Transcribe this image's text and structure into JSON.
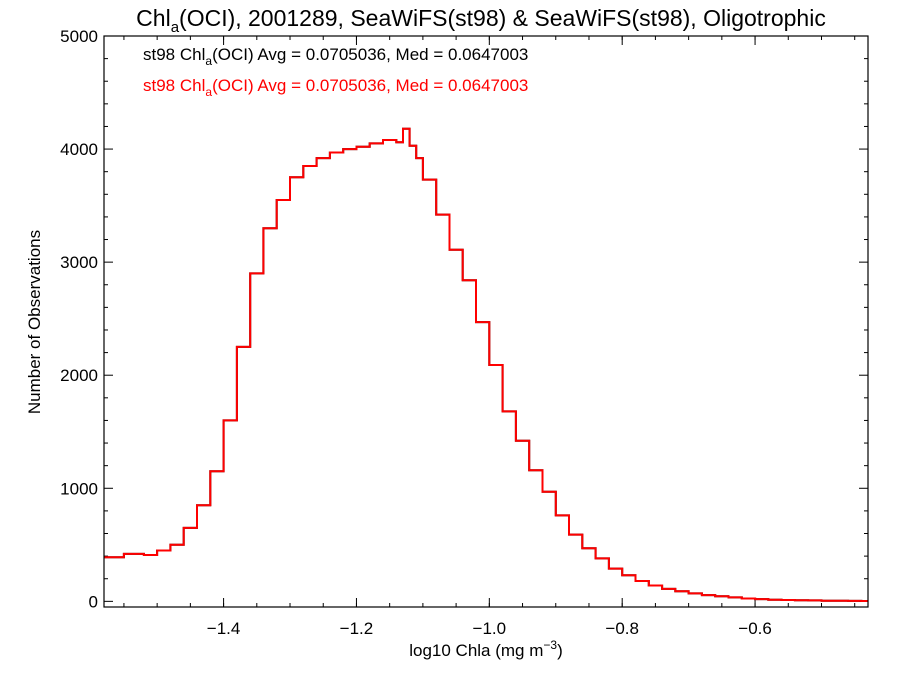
{
  "chart_data": {
    "type": "line",
    "style": "step",
    "title": {
      "prefix": "Chl",
      "subscript": "a",
      "suffix": "(OCI), 2001289, SeaWiFS(st98) & SeaWiFS(st98), Oligotrophic"
    },
    "xlabel": {
      "main": "log10 Chla (mg m",
      "sup": "−3",
      "close": ")"
    },
    "ylabel": "Number of Observations",
    "xlim": [
      -1.58,
      -0.43
    ],
    "ylim": [
      -50,
      5000
    ],
    "xticks": [
      -1.4,
      -1.2,
      -1.0,
      -0.8,
      -0.6
    ],
    "xtick_labels": [
      "−1.4",
      "−1.2",
      "−1.0",
      "−0.8",
      "−0.6"
    ],
    "yticks": [
      0,
      1000,
      2000,
      3000,
      4000,
      5000
    ],
    "ytick_labels": [
      "0",
      "1000",
      "2000",
      "3000",
      "4000",
      "5000"
    ],
    "grid": false,
    "annotations": [
      {
        "prefix": "st98 Chl",
        "subscript": "a",
        "suffix": "(OCI) Avg = 0.0705036, Med = 0.0647003",
        "color": "#000000"
      },
      {
        "prefix": "st98 Chl",
        "subscript": "a",
        "suffix": "(OCI) Avg = 0.0705036, Med = 0.0647003",
        "color": "#ff0000"
      }
    ],
    "series": [
      {
        "color": "#000000",
        "x": [
          -1.58,
          -1.55,
          -1.52,
          -1.5,
          -1.48,
          -1.46,
          -1.44,
          -1.42,
          -1.4,
          -1.38,
          -1.36,
          -1.34,
          -1.32,
          -1.3,
          -1.28,
          -1.26,
          -1.24,
          -1.22,
          -1.2,
          -1.18,
          -1.16,
          -1.14,
          -1.13,
          -1.12,
          -1.11,
          -1.1,
          -1.08,
          -1.06,
          -1.04,
          -1.02,
          -1.0,
          -0.98,
          -0.96,
          -0.94,
          -0.92,
          -0.9,
          -0.88,
          -0.86,
          -0.84,
          -0.82,
          -0.8,
          -0.78,
          -0.76,
          -0.74,
          -0.72,
          -0.7,
          -0.68,
          -0.66,
          -0.64,
          -0.62,
          -0.6,
          -0.58,
          -0.56,
          -0.54,
          -0.52,
          -0.5,
          -0.48,
          -0.46,
          -0.44
        ],
        "y": [
          390,
          420,
          410,
          450,
          500,
          650,
          850,
          1150,
          1600,
          2250,
          2900,
          3300,
          3550,
          3750,
          3850,
          3920,
          3970,
          4000,
          4020,
          4050,
          4080,
          4060,
          4180,
          4030,
          3920,
          3730,
          3420,
          3110,
          2840,
          2470,
          2090,
          1680,
          1420,
          1160,
          970,
          760,
          590,
          470,
          380,
          290,
          230,
          180,
          140,
          110,
          90,
          70,
          55,
          45,
          35,
          25,
          20,
          15,
          12,
          10,
          8,
          6,
          5,
          4,
          3
        ]
      },
      {
        "color": "#ff0000",
        "x": [
          -1.58,
          -1.55,
          -1.52,
          -1.5,
          -1.48,
          -1.46,
          -1.44,
          -1.42,
          -1.4,
          -1.38,
          -1.36,
          -1.34,
          -1.32,
          -1.3,
          -1.28,
          -1.26,
          -1.24,
          -1.22,
          -1.2,
          -1.18,
          -1.16,
          -1.14,
          -1.13,
          -1.12,
          -1.11,
          -1.1,
          -1.08,
          -1.06,
          -1.04,
          -1.02,
          -1.0,
          -0.98,
          -0.96,
          -0.94,
          -0.92,
          -0.9,
          -0.88,
          -0.86,
          -0.84,
          -0.82,
          -0.8,
          -0.78,
          -0.76,
          -0.74,
          -0.72,
          -0.7,
          -0.68,
          -0.66,
          -0.64,
          -0.62,
          -0.6,
          -0.58,
          -0.56,
          -0.54,
          -0.52,
          -0.5,
          -0.48,
          -0.46,
          -0.44
        ],
        "y": [
          390,
          420,
          410,
          450,
          500,
          650,
          850,
          1150,
          1600,
          2250,
          2900,
          3300,
          3550,
          3750,
          3850,
          3920,
          3970,
          4000,
          4020,
          4050,
          4080,
          4060,
          4180,
          4030,
          3920,
          3730,
          3420,
          3110,
          2840,
          2470,
          2090,
          1680,
          1420,
          1160,
          970,
          760,
          590,
          470,
          380,
          290,
          230,
          180,
          140,
          110,
          90,
          70,
          55,
          45,
          35,
          25,
          20,
          15,
          12,
          10,
          8,
          6,
          5,
          4,
          3
        ]
      }
    ]
  }
}
